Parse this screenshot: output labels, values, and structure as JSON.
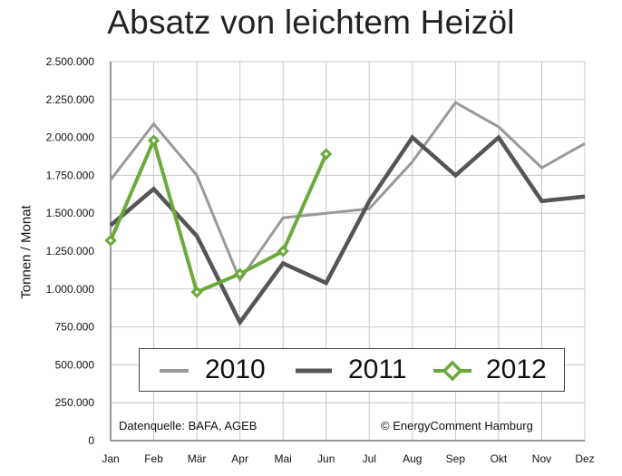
{
  "chart_data": {
    "type": "line",
    "title": "Absatz von leichtem Heizöl",
    "xlabel": "",
    "ylabel": "Tonnen / Monat",
    "categories": [
      "Jan",
      "Feb",
      "Mär",
      "Apr",
      "Mai",
      "Jun",
      "Jul",
      "Aug",
      "Sep",
      "Okt",
      "Nov",
      "Dez"
    ],
    "ylim": [
      0,
      2500000
    ],
    "yticks": [
      "0",
      "250.000",
      "500.000",
      "750.000",
      "1.000.000",
      "1.250.000",
      "1.500.000",
      "1.750.000",
      "2.000.000",
      "2.250.000",
      "2.500.000"
    ],
    "grid": true,
    "legend_position": "bottom-center",
    "series": [
      {
        "name": "2010",
        "color": "#999999",
        "marker": "none",
        "values": [
          1720000,
          2090000,
          1750000,
          1060000,
          1470000,
          1500000,
          1530000,
          1840000,
          2230000,
          2070000,
          1800000,
          1960000
        ]
      },
      {
        "name": "2011",
        "color": "#555555",
        "marker": "none",
        "values": [
          1420000,
          1660000,
          1350000,
          780000,
          1170000,
          1040000,
          1580000,
          2000000,
          1750000,
          2000000,
          1580000,
          1610000
        ]
      },
      {
        "name": "2012",
        "color": "#6aaa3a",
        "marker": "diamond",
        "values": [
          1320000,
          1980000,
          980000,
          1100000,
          1250000,
          1890000,
          null,
          null,
          null,
          null,
          null,
          null
        ]
      }
    ],
    "annotations": [
      "Datenquelle: BAFA, AGEB",
      "© EnergyComment Hamburg"
    ]
  }
}
